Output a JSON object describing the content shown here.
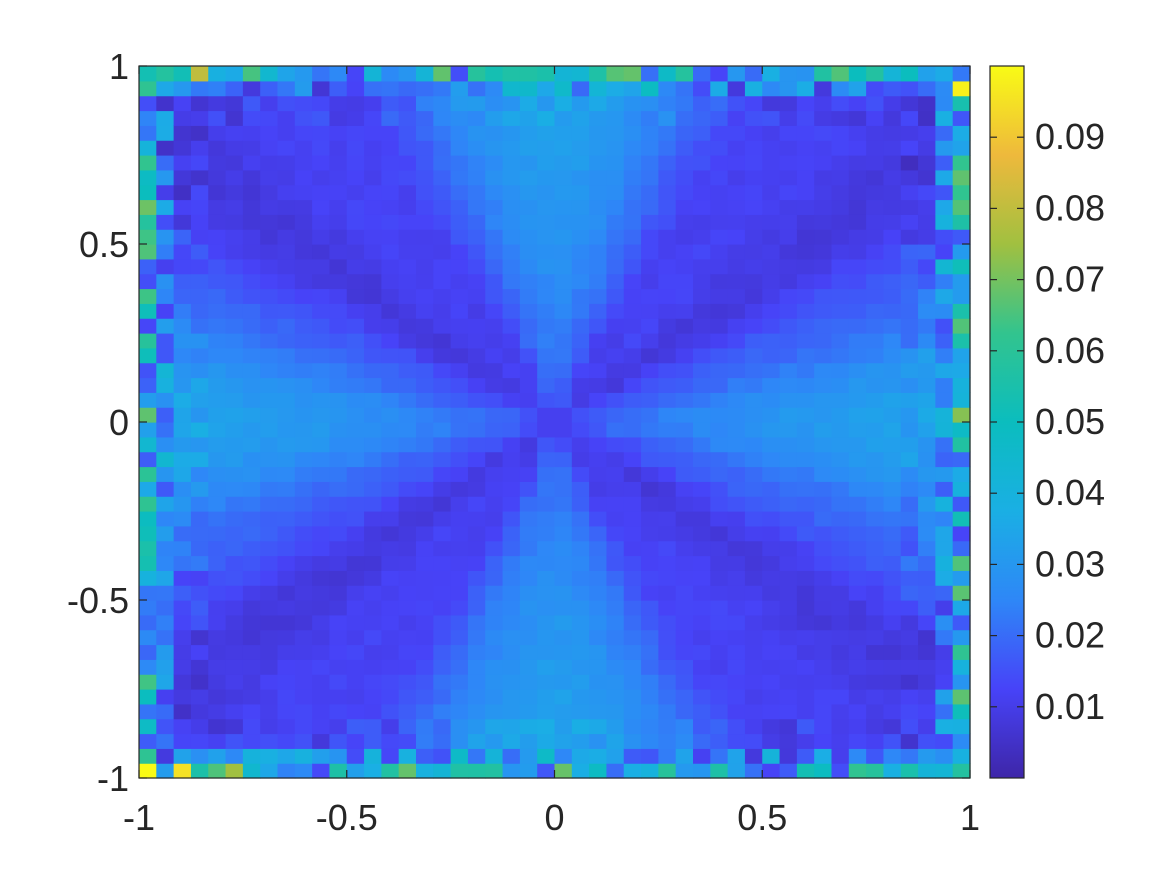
{
  "chart_data": {
    "type": "heatmap",
    "title": "",
    "xlabel": "",
    "ylabel": "",
    "xlim": [
      -1,
      1
    ],
    "ylim": [
      -1,
      1
    ],
    "grid": false,
    "colormap": "parula",
    "colormap_stops": [
      "#3e26a8",
      "#4743f8",
      "#2e87f7",
      "#1aafe4",
      "#0bbdbe",
      "#32c48e",
      "#a1c040",
      "#eeb93c",
      "#f9fb15"
    ],
    "clim": [
      0,
      0.1
    ],
    "grid_size": [
      48,
      48
    ],
    "xticks": [
      -1,
      -0.5,
      0,
      0.5,
      1
    ],
    "xtick_labels": [
      "-1",
      "-0.5",
      "0",
      "0.5",
      "1"
    ],
    "yticks": [
      -1,
      -0.5,
      0,
      0.5,
      1
    ],
    "ytick_labels": [
      "-1",
      "-0.5",
      "0",
      "0.5",
      "1"
    ],
    "colorbar": {
      "location": "right",
      "ticks": [
        0.01,
        0.02,
        0.03,
        0.04,
        0.05,
        0.06,
        0.07,
        0.08,
        0.09
      ],
      "tick_labels": [
        "0.01",
        "0.02",
        "0.03",
        "0.04",
        "0.05",
        "0.06",
        "0.07",
        "0.08",
        "0.09"
      ]
    },
    "pattern": "error field: low values (~0.005–0.015) in dark fan bands radiating from the centre, medium values (~0.025–0.035) along the two diagonals, highest values (up to ~0.1) in noisy cells along the boundary, bright yellow at the bottom-left corner"
  }
}
